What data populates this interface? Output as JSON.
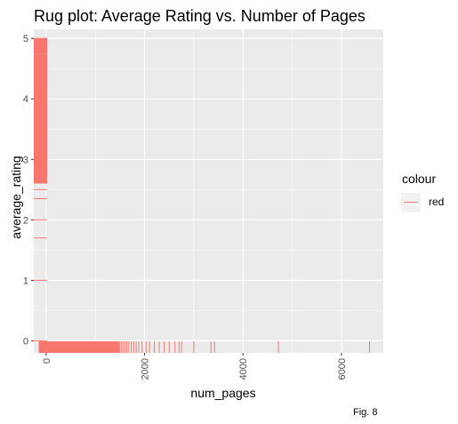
{
  "chart_data": {
    "type": "rug",
    "title": "Rug plot: Average Rating vs. Number of Pages",
    "xlabel": "num_pages",
    "ylabel": "average_rating",
    "caption": "Fig. 8",
    "xlim": [
      -250,
      6850
    ],
    "ylim": [
      -0.2,
      5.15
    ],
    "x_ticks": [
      0,
      2000,
      4000,
      6000
    ],
    "x_tick_labels": [
      "0",
      "2000",
      "4000",
      "6000"
    ],
    "y_ticks": [
      0,
      1,
      2,
      3,
      4,
      5
    ],
    "y_tick_labels": [
      "0",
      "1",
      "2",
      "3",
      "4",
      "5"
    ],
    "grid": true,
    "rug_color": "#f8766d",
    "legend": {
      "title": "colour",
      "entries": [
        "red"
      ],
      "position": "right"
    },
    "x_rug_values": [
      1525,
      1560,
      1600,
      1640,
      1680,
      1730,
      1780,
      1830,
      1880,
      1950,
      2030,
      2100,
      2200,
      2300,
      2400,
      2500,
      2620,
      2700,
      2750,
      3000,
      3350,
      3420,
      4720,
      6570
    ],
    "y_rug_values": [
      0,
      1,
      1.7,
      2,
      2.35,
      2.5,
      2.65,
      2.75,
      2.8,
      2.85,
      2.9,
      2.95,
      3.0,
      3.05,
      3.1,
      3.15,
      3.2,
      3.25,
      4.8,
      4.85,
      4.9,
      4.95,
      5.0
    ]
  }
}
